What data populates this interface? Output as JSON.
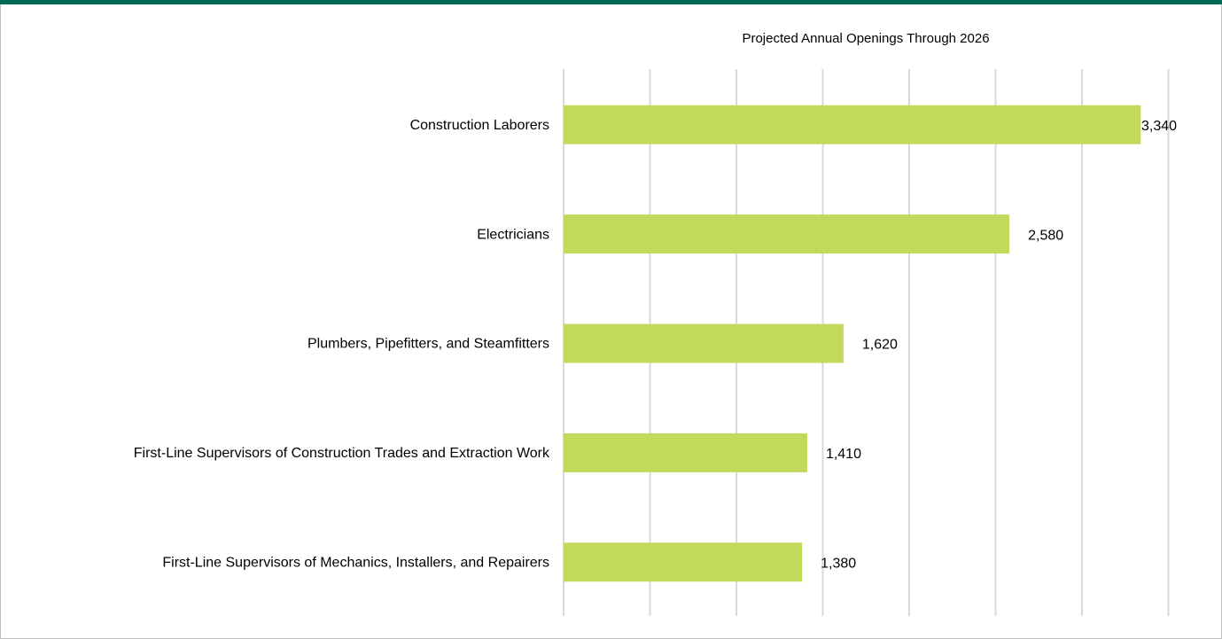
{
  "chart_data": {
    "type": "bar",
    "orientation": "horizontal",
    "title": "Projected Annual Openings Through 2026",
    "categories": [
      "Construction Laborers",
      "Electricians",
      "Plumbers, Pipefitters, and Steamfitters",
      "First-Line Supervisors of Construction Trades and Extraction Work",
      "First-Line Supervisors of Mechanics, Installers, and Repairers"
    ],
    "values": [
      3340,
      2580,
      1620,
      1410,
      1380
    ],
    "value_labels": [
      "3,340",
      "2,580",
      "1,620",
      "1,410",
      "1,380"
    ],
    "color": "#c2da5b",
    "xlim": [
      0,
      3500
    ],
    "xticks": [
      0,
      500,
      1000,
      1500,
      2000,
      2500,
      3000,
      3500
    ],
    "grid": true
  }
}
